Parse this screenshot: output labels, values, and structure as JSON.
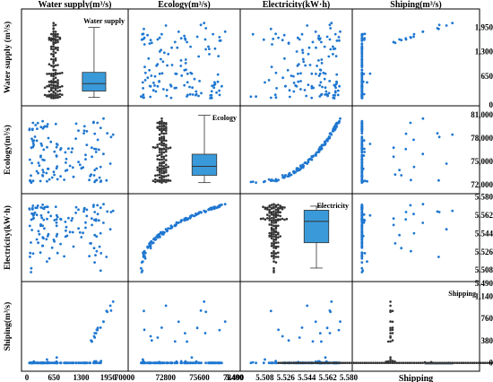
{
  "chart_data": {
    "type": "scatter",
    "variables": [
      "Water supply",
      "Ecology",
      "Electricity",
      "Shiping"
    ],
    "column_headers": [
      "Water supply(m³/s)",
      "Ecology(m³/s)",
      "Electricity(kW·h)",
      "Shiping(m³/s)"
    ],
    "row_labels": [
      "Water supply (m³/s)",
      "Ecology(m³/s)",
      "Electricity(kW·h)",
      "Shiping(m³/s)"
    ],
    "diag_labels": [
      "Water supply",
      "Ecology",
      "Electricity",
      "Shipping"
    ],
    "x_axis_label": "Shipping",
    "x_ticks": [
      [
        "0",
        "650",
        "1300",
        "1950"
      ],
      [
        "70000",
        "72800",
        "75600",
        "78400"
      ],
      [
        "5.490",
        "5.508",
        "5.526",
        "5.544",
        "5.562",
        "5.580"
      ],
      []
    ],
    "y_ticks": [
      [
        "1,950",
        "1,300",
        "650",
        "0"
      ],
      [
        "81,000",
        "78,000",
        "75,000",
        "72,000"
      ],
      [
        "5.580",
        "5.562",
        "5.544",
        "5.526",
        "5.508"
      ],
      [
        "5.490",
        "1,140",
        "760",
        "380",
        "0"
      ]
    ],
    "ranges": [
      [
        0,
        2300
      ],
      [
        71000,
        80500
      ],
      [
        5.502,
        5.578
      ],
      [
        -50,
        1300
      ]
    ],
    "point_color": "#1f77d0",
    "box_color": "#3a9ad9",
    "swarm_color": "#333333",
    "grid": false,
    "box_stats": [
      {
        "whisker_low": 80,
        "q1": 250,
        "median": 450,
        "q3": 750,
        "whisker_high": 1950
      },
      {
        "whisker_low": 71700,
        "q1": 72600,
        "median": 73700,
        "q3": 75200,
        "whisker_high": 80000
      },
      {
        "whisker_low": 5.51,
        "q1": 5.535,
        "median": 5.556,
        "q3": 5.567,
        "whisker_high": 5.571
      },
      {
        "whisker_low": 0,
        "q1": 0,
        "median": 0,
        "q3": 0,
        "whisker_high": 0
      }
    ]
  }
}
